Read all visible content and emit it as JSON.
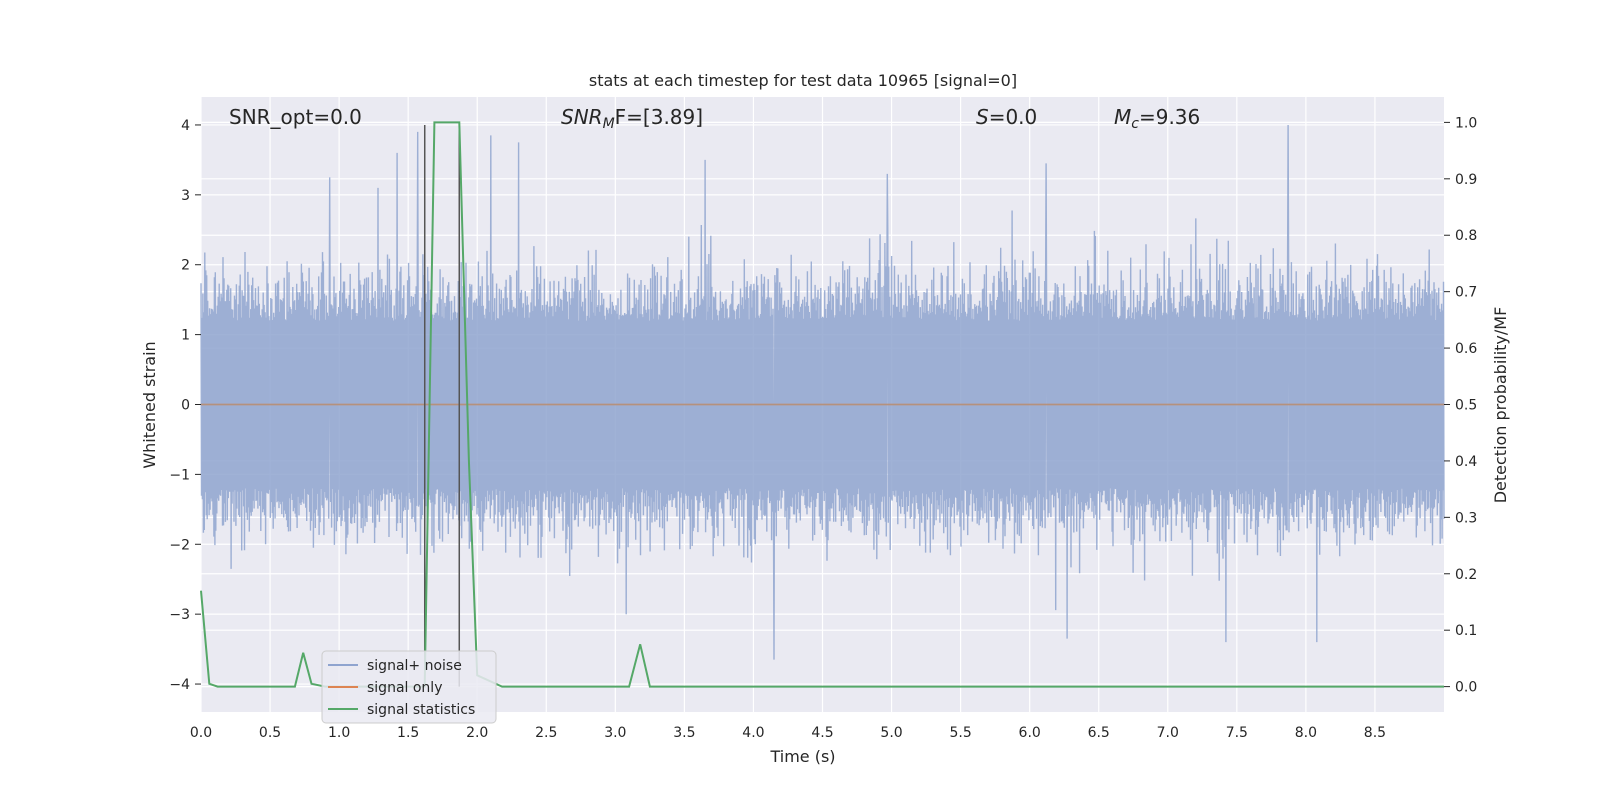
{
  "chart_data": {
    "type": "line",
    "title": "stats at each timestep for test data 10965 [signal=0]",
    "xlabel": "Time (s)",
    "ylabel": "Whitened strain",
    "ylabel_right": "Detection probability/MF",
    "xlim": [
      0.0,
      9.0
    ],
    "ylim": [
      -4.4,
      4.4
    ],
    "ylim_right": [
      -0.045,
      1.045
    ],
    "x_ticks": [
      "0.0",
      "0.5",
      "1.0",
      "1.5",
      "2.0",
      "2.5",
      "3.0",
      "3.5",
      "4.0",
      "4.5",
      "5.0",
      "5.5",
      "6.0",
      "6.5",
      "7.0",
      "7.5",
      "8.0",
      "8.5"
    ],
    "y_ticks": [
      "−4",
      "−3",
      "−2",
      "−1",
      "0",
      "1",
      "2",
      "3",
      "4"
    ],
    "y_right_ticks": [
      "0.0",
      "0.1",
      "0.2",
      "0.3",
      "0.4",
      "0.5",
      "0.6",
      "0.7",
      "0.8",
      "0.9",
      "1.0"
    ],
    "grid": true,
    "annotations": {
      "snr_opt": "SNR_opt=0.0",
      "snr_mf_main": "SNR",
      "snr_mf_sub": "M",
      "snr_mf_rest": "F=[3.89]",
      "s_main": "S",
      "s_rest": "=0.0",
      "mc_main": "M",
      "mc_sub": "c",
      "mc_rest": "=9.36"
    },
    "vertical_markers_x": [
      1.62,
      1.87
    ],
    "series": [
      {
        "name": "signal+ noise",
        "color": "#8fa4cf",
        "description_kind": "noise",
        "envelope_max_abs": 4.0,
        "spike_peaks": [
          {
            "x": 0.93,
            "y": 3.25
          },
          {
            "x": 1.28,
            "y": 3.1
          },
          {
            "x": 1.42,
            "y": 3.6
          },
          {
            "x": 1.57,
            "y": 3.9
          },
          {
            "x": 2.1,
            "y": 3.85
          },
          {
            "x": 2.3,
            "y": 3.75
          },
          {
            "x": 3.65,
            "y": 3.5
          },
          {
            "x": 4.97,
            "y": 3.3
          },
          {
            "x": 6.12,
            "y": 3.45
          },
          {
            "x": 7.87,
            "y": 4.0
          },
          {
            "x": 4.15,
            "y": -3.65
          },
          {
            "x": 3.08,
            "y": -3.0
          },
          {
            "x": 7.42,
            "y": -3.4
          },
          {
            "x": 8.08,
            "y": -3.4
          },
          {
            "x": 6.27,
            "y": -3.35
          }
        ]
      },
      {
        "name": "signal only",
        "color": "#dd8452",
        "x": [
          0.0,
          9.0
        ],
        "y": [
          0.0,
          0.0
        ]
      },
      {
        "name": "signal statistics",
        "color": "#55a868",
        "axis": "right",
        "x": [
          0.0,
          0.06,
          0.12,
          0.2,
          0.68,
          0.74,
          0.8,
          0.9,
          1.6,
          1.62,
          1.69,
          1.87,
          1.94,
          2.0,
          2.18,
          2.25,
          3.1,
          3.18,
          3.25,
          9.0
        ],
        "y": [
          0.17,
          0.005,
          0.0,
          0.0,
          0.0,
          0.06,
          0.005,
          0.0,
          0.0,
          0.0,
          1.0,
          1.0,
          0.4,
          0.02,
          0.0,
          0.0,
          0.0,
          0.075,
          0.0,
          0.0
        ]
      }
    ],
    "legend": {
      "position": "lower-left",
      "entries": [
        "signal+ noise",
        "signal only",
        "signal statistics"
      ]
    }
  }
}
